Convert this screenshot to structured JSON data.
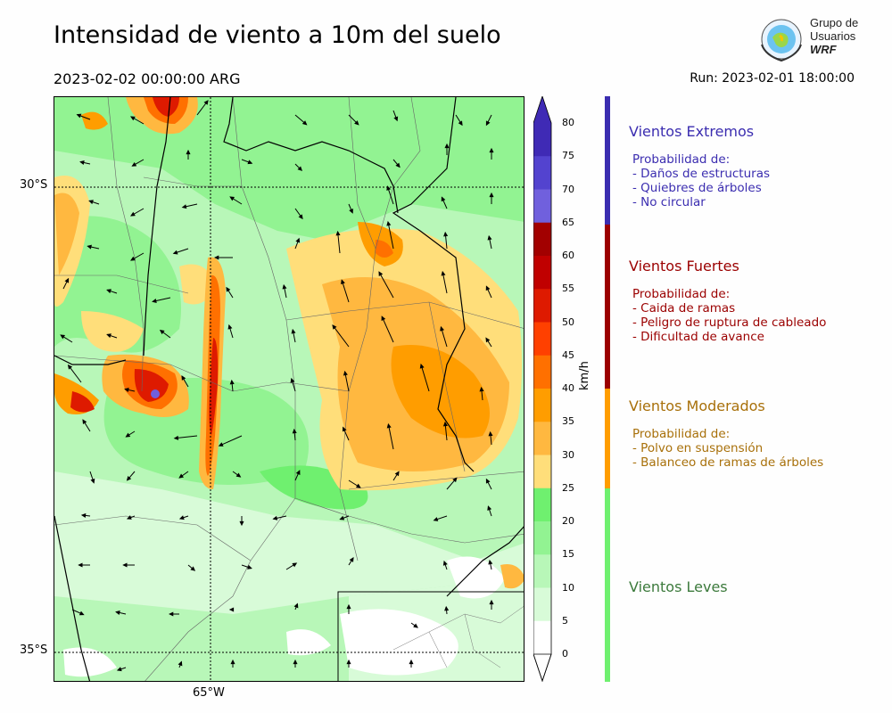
{
  "header": {
    "title": "Intensidad de viento a 10m del suelo",
    "valid_time": "2023-02-02 00:00:00 ARG",
    "run": "Run: 2023-02-01 18:00:00"
  },
  "logo": {
    "line1": "Grupo de",
    "line2": "Usuarios",
    "line3": "WRF"
  },
  "map": {
    "lat_labels": [
      "30°S",
      "35°S"
    ],
    "lon_labels": [
      "65°W"
    ]
  },
  "colorbar": {
    "unit": "km/h",
    "ticks": [
      "80",
      "75",
      "70",
      "65",
      "60",
      "55",
      "50",
      "45",
      "40",
      "35",
      "30",
      "25",
      "20",
      "15",
      "10",
      "5",
      "0"
    ],
    "colors": [
      "#3f2ab5",
      "#5343cf",
      "#7060dd",
      "#a20000",
      "#c00000",
      "#de1a00",
      "#ff4000",
      "#ff7000",
      "#ff9d00",
      "#ffb840",
      "#ffde7a",
      "#6ff06f",
      "#92f392",
      "#b8f7b8",
      "#d8fbd8",
      "#ffffff"
    ]
  },
  "categories": [
    {
      "title": "Vientos Extremos",
      "color": "#3b2db0",
      "desc": [
        "Probabilidad de:",
        "- Daños de estructuras",
        "- Quiebres de árboles",
        "- No circular"
      ]
    },
    {
      "title": "Vientos Fuertes",
      "color": "#9b0000",
      "desc": [
        "Probabilidad de:",
        "- Caida de ramas",
        "- Peligro de ruptura de cableado",
        "- Dificultad de avance"
      ]
    },
    {
      "title": "Vientos Moderados",
      "color": "#a8700a",
      "desc": [
        "Probabilidad de:",
        "- Polvo en suspensión",
        "- Balanceo de ramas de árboles"
      ]
    },
    {
      "title": "Vientos Leves",
      "color": "#3c7a3c",
      "desc": []
    }
  ]
}
